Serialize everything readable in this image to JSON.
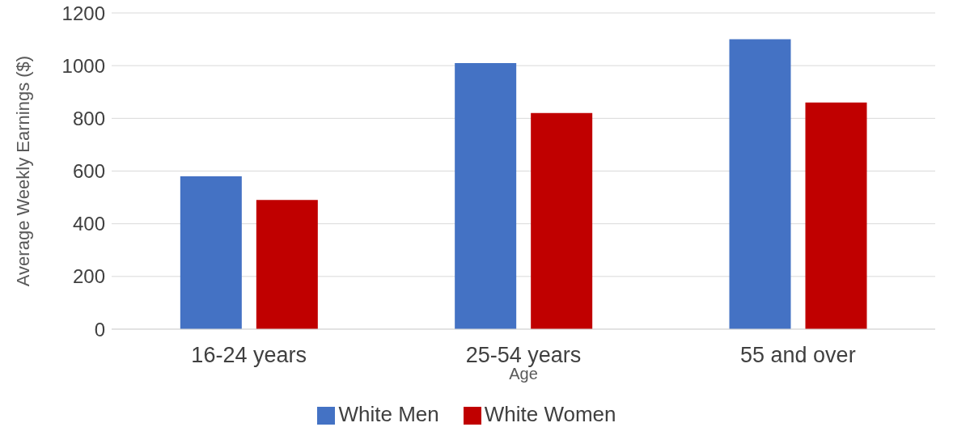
{
  "chart_data": {
    "type": "bar",
    "xlabel": "Age",
    "ylabel": "Average Weekly Earnings ($)",
    "categories": [
      "16-24 years",
      "25-54 years",
      "55 and over"
    ],
    "series": [
      {
        "name": "White Men",
        "color": "#4472c4",
        "values": [
          580,
          1010,
          1100
        ]
      },
      {
        "name": "White Women",
        "color": "#c00000",
        "values": [
          490,
          820,
          860
        ]
      }
    ],
    "ylim": [
      0,
      1200
    ],
    "yticks": [
      0,
      200,
      400,
      600,
      800,
      1000,
      1200
    ],
    "grid": "y",
    "legend": "bottom"
  }
}
